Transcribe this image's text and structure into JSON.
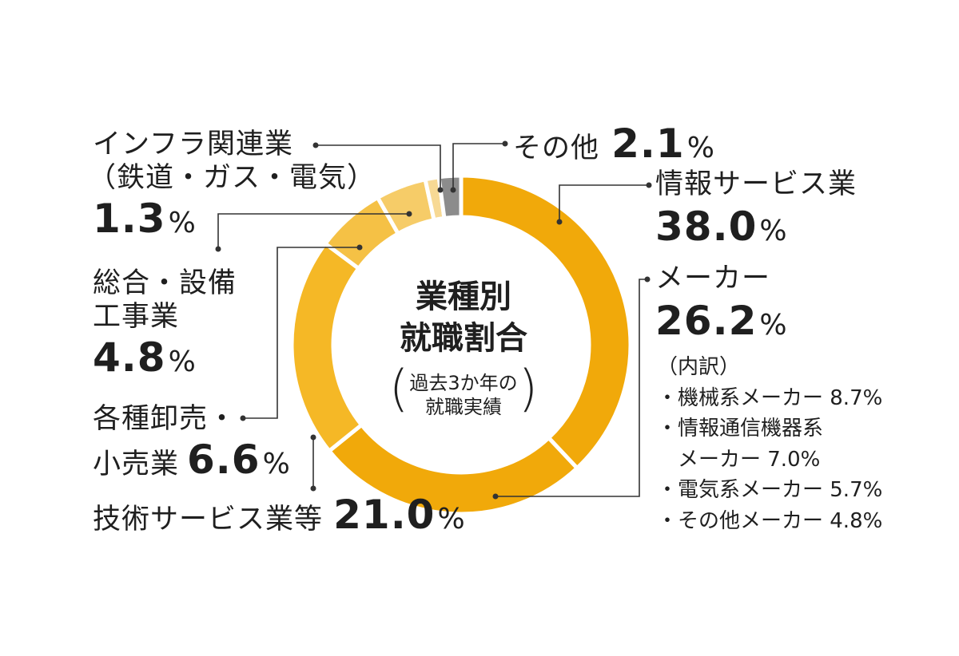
{
  "chart_data": {
    "type": "donut",
    "center_title_lines": [
      "業種別",
      "就職割合"
    ],
    "center_note_lines": [
      "過去3か年の",
      "就職実績"
    ],
    "segments": [
      {
        "name": "情報サービス業",
        "value": 38.0,
        "color": "#f1a90a"
      },
      {
        "name": "技術サービス業等",
        "value": 21.0,
        "color": "#f5b826"
      },
      {
        "name": "各種卸売・小売業",
        "value": 6.6,
        "color": "#f5c145"
      },
      {
        "name": "総合・設備工事業",
        "value": 4.8,
        "color": "#f6cc68"
      },
      {
        "name": "インフラ関連業（鉄道・ガス・電気）",
        "value": 1.3,
        "color": "#f7d994"
      },
      {
        "name": "その他",
        "value": 2.1,
        "color": "#8c8c8c"
      }
    ],
    "maker": {
      "name": "メーカー",
      "value": 26.2,
      "color": "#f1a90a"
    },
    "labels": {
      "info": {
        "line1": "情報サービス業",
        "value": "38.0"
      },
      "maker": {
        "line1": "メーカー",
        "value": "26.2"
      },
      "tech": {
        "line1": "技術サービス業等",
        "value": "21.0"
      },
      "retail": {
        "line1": "各種卸売・",
        "line2": "小売業",
        "value": "6.6"
      },
      "construction": {
        "line1": "総合・設備",
        "line2": "工事業",
        "value": "4.8"
      },
      "infra": {
        "line1": "インフラ関連業",
        "line2": "（鉄道・ガス・電気）",
        "value": "1.3"
      },
      "other": {
        "line1": "その他",
        "value": "2.1"
      },
      "percent_sign": "%"
    },
    "maker_breakdown": {
      "title": "（内訳）",
      "items": [
        "・機械系メーカー 8.7%",
        "・情報通信機器系",
        "　メーカー 7.0%",
        "・電気系メーカー 5.7%",
        "・その他メーカー 4.8%"
      ]
    }
  }
}
